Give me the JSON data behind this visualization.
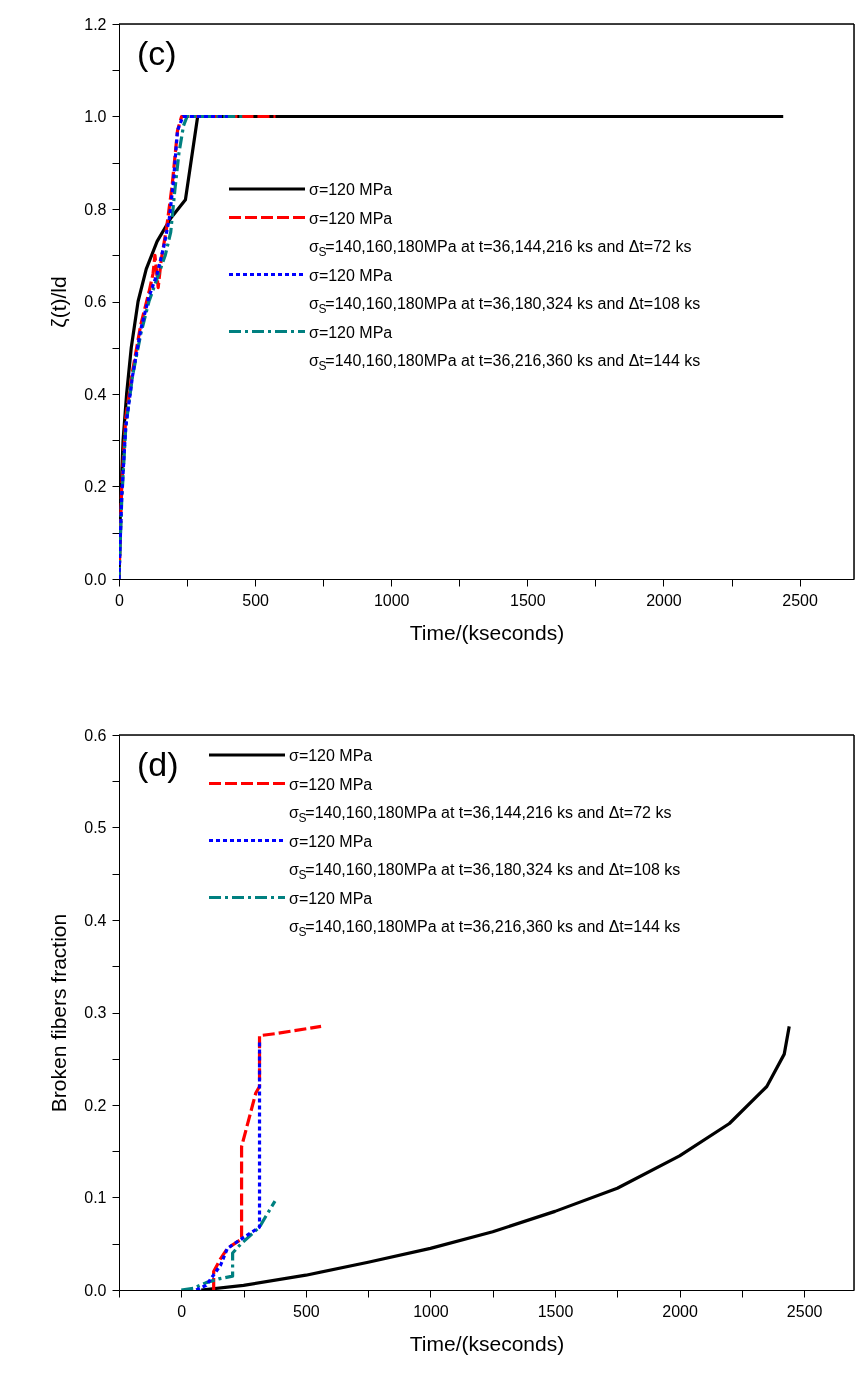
{
  "chart_data": [
    {
      "type": "line",
      "annotations": [
        "(c)"
      ],
      "xlabel": "Time/(kseconds)",
      "ylabel": "ζ(t)/ld",
      "xlim": [
        0,
        2700
      ],
      "ylim": [
        0,
        1.2
      ],
      "xticks": [
        0,
        {
          "value": 250,
          "label": null
        },
        500,
        {
          "value": 750,
          "label": null
        },
        1000,
        {
          "value": 1250,
          "label": null
        },
        1500,
        {
          "value": 1750,
          "label": null
        },
        2000,
        {
          "value": 2250,
          "label": null
        },
        2500
      ],
      "yticks": [
        {
          "value": 0,
          "label": "0.0"
        },
        {
          "value": 0.1,
          "label": null
        },
        {
          "value": 0.2,
          "label": "0.2"
        },
        {
          "value": 0.3,
          "label": null
        },
        {
          "value": 0.4,
          "label": "0.4"
        },
        {
          "value": 0.5,
          "label": null
        },
        {
          "value": 0.6,
          "label": "0.6"
        },
        {
          "value": 0.7,
          "label": null
        },
        {
          "value": 0.8,
          "label": "0.8"
        },
        {
          "value": 0.9,
          "label": null
        },
        {
          "value": 1.0,
          "label": "1.0"
        },
        {
          "value": 1.1,
          "label": null
        },
        {
          "value": 1.2,
          "label": "1.2"
        }
      ],
      "grid": false,
      "legend": "right",
      "marker": "none",
      "series": [
        {
          "name": "σ=120 MPa",
          "color": "#000000",
          "line_style": "solid",
          "x": [
            0,
            5,
            15,
            28,
            45,
            70,
            100,
            140,
            190,
            244,
            289,
            2440
          ],
          "values": [
            0,
            0.15,
            0.3,
            0.4,
            0.5,
            0.6,
            0.67,
            0.73,
            0.78,
            0.82,
            1.0,
            1.0
          ]
        },
        {
          "name": "σ=120 MPa\nσ$_{S}$=140,160,180MPa at t=36,144,216 ks and Δt=72 ks",
          "color": "#ff0000",
          "line_style": "dashed",
          "x": [
            0,
            10,
            25,
            50,
            80,
            110,
            125,
            132,
            144,
            155,
            175,
            195,
            215,
            230,
            575
          ],
          "values": [
            0,
            0.2,
            0.35,
            0.45,
            0.55,
            0.62,
            0.66,
            0.7,
            0.63,
            0.69,
            0.76,
            0.85,
            0.97,
            1.0,
            1.0
          ]
        },
        {
          "name": "σ=120 MPa\nσ$_{S}$=140,160,180MPa at t=36,180,324 ks and Δt=108 ks",
          "color": "#0000ff",
          "line_style": "dotted",
          "x": [
            0,
            10,
            25,
            50,
            80,
            110,
            140,
            165,
            185,
            200,
            215,
            235,
            400
          ],
          "values": [
            0,
            0.18,
            0.33,
            0.44,
            0.54,
            0.61,
            0.66,
            0.72,
            0.78,
            0.86,
            0.97,
            1.0,
            1.0
          ]
        },
        {
          "name": "σ=120 MPa\nσ$_{S}$=140,160,180MPa at t=36,216,360 ks and Δt=144 ks",
          "color": "#008080",
          "line_style": "dashdot",
          "x": [
            0,
            10,
            25,
            50,
            80,
            110,
            140,
            170,
            190,
            205,
            220,
            237,
            250,
            460
          ],
          "values": [
            0,
            0.17,
            0.33,
            0.44,
            0.53,
            0.6,
            0.65,
            0.7,
            0.75,
            0.84,
            0.92,
            0.98,
            1.0,
            1.0
          ]
        }
      ]
    },
    {
      "type": "line",
      "annotations": [
        "(d)"
      ],
      "xlabel": "Time/(kseconds)",
      "ylabel": "Broken fibers fraction",
      "xlim": [
        -250,
        2700
      ],
      "ylim": [
        0,
        0.6
      ],
      "xticks": [
        {
          "value": -250,
          "label": null
        },
        0,
        {
          "value": 250,
          "label": null
        },
        500,
        {
          "value": 750,
          "label": null
        },
        1000,
        {
          "value": 1250,
          "label": null
        },
        1500,
        {
          "value": 1750,
          "label": null
        },
        2000,
        {
          "value": 2250,
          "label": null
        },
        2500
      ],
      "yticks": [
        {
          "value": 0,
          "label": "0.0"
        },
        {
          "value": 0.05,
          "label": null
        },
        {
          "value": 0.1,
          "label": "0.1"
        },
        {
          "value": 0.15,
          "label": null
        },
        {
          "value": 0.2,
          "label": "0.2"
        },
        {
          "value": 0.25,
          "label": null
        },
        {
          "value": 0.3,
          "label": "0.3"
        },
        {
          "value": 0.35,
          "label": null
        },
        {
          "value": 0.4,
          "label": "0.4"
        },
        {
          "value": 0.45,
          "label": null
        },
        {
          "value": 0.5,
          "label": "0.5"
        },
        {
          "value": 0.55,
          "label": null
        },
        {
          "value": 0.6,
          "label": "0.6"
        }
      ],
      "grid": false,
      "legend": "top left",
      "marker": "none",
      "series": [
        {
          "name": "σ=120 MPa",
          "color": "#000000",
          "line_style": "solid",
          "x": [
            80,
            250,
            500,
            750,
            1000,
            1250,
            1500,
            1750,
            2000,
            2200,
            2350,
            2420,
            2440
          ],
          "values": [
            0,
            0.005,
            0.016,
            0.03,
            0.045,
            0.063,
            0.085,
            0.11,
            0.145,
            0.18,
            0.22,
            0.255,
            0.285
          ]
        },
        {
          "name": "σ=120 MPa\nσ$_{S}$=140,160,180MPa at t=36,144,216 ks and Δt=72 ks",
          "color": "#ff0000",
          "line_style": "dashed",
          "x": [
            130,
            130,
            158,
            185,
            242,
            242,
            299,
            314,
            314,
            375,
            561
          ],
          "values": [
            0,
            0.02,
            0.034,
            0.045,
            0.055,
            0.155,
            0.213,
            0.22,
            0.275,
            0.277,
            0.285
          ]
        },
        {
          "name": "σ=120 MPa\nσ$_{S}$=140,160,180MPa at t=36,180,324 ks and Δt=108 ks",
          "color": "#0000ff",
          "line_style": "dotted",
          "x": [
            60,
            100,
            158,
            185,
            240,
            314,
            314
          ],
          "values": [
            0,
            0.005,
            0.027,
            0.045,
            0.055,
            0.068,
            0.27
          ]
        },
        {
          "name": "σ=120 MPa\nσ$_{S}$=140,160,180MPa at t=36,216,360 ks and Δt=144 ks",
          "color": "#008080",
          "line_style": "dashdot",
          "x": [
            0,
            50,
            100,
            150,
            206,
            206,
            240,
            314,
            340,
            376
          ],
          "values": [
            0,
            0.002,
            0.008,
            0.012,
            0.015,
            0.04,
            0.05,
            0.068,
            0.08,
            0.096
          ]
        }
      ]
    }
  ]
}
